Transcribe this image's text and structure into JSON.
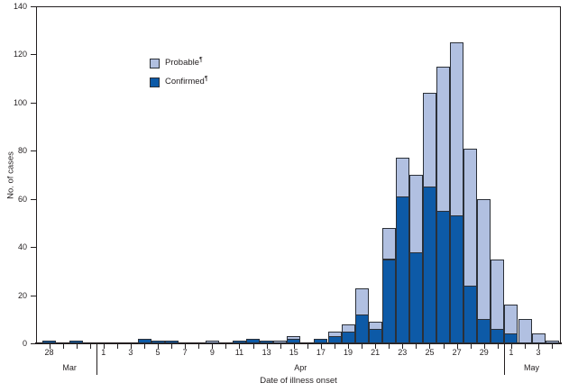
{
  "chart_data": {
    "type": "bar",
    "stacked": true,
    "xlabel": "Date of illness onset",
    "ylabel": "No. of cases",
    "ylim": [
      0,
      140
    ],
    "y_ticks": [
      0,
      20,
      40,
      60,
      80,
      100,
      120,
      140
    ],
    "grid": false,
    "legend_position": "upper-left-inside",
    "legend": [
      {
        "label": "Probable",
        "marker": "¶",
        "color": "#b1c0e1"
      },
      {
        "label": "Confirmed",
        "marker": "¶",
        "color": "#0d5aa7"
      }
    ],
    "series_note": "values are cases per day; stacked: confirmed (dark) on bottom, probable (light) on top",
    "months": [
      {
        "name": "Mar",
        "from": 0,
        "to": 3
      },
      {
        "name": "Apr",
        "from": 4,
        "to": 33
      },
      {
        "name": "May",
        "from": 34,
        "to": 37
      }
    ],
    "days": [
      {
        "month": "Mar",
        "day": 28,
        "tick_label": "28",
        "confirmed": 1,
        "probable": 0
      },
      {
        "month": "Mar",
        "day": 29,
        "tick_label": "",
        "confirmed": 0,
        "probable": 0
      },
      {
        "month": "Mar",
        "day": 30,
        "tick_label": "",
        "confirmed": 1,
        "probable": 0
      },
      {
        "month": "Mar",
        "day": 31,
        "tick_label": "",
        "confirmed": 0,
        "probable": 0
      },
      {
        "month": "Apr",
        "day": 1,
        "tick_label": "1",
        "confirmed": 0,
        "probable": 0
      },
      {
        "month": "Apr",
        "day": 2,
        "tick_label": "",
        "confirmed": 0,
        "probable": 0
      },
      {
        "month": "Apr",
        "day": 3,
        "tick_label": "3",
        "confirmed": 0,
        "probable": 0
      },
      {
        "month": "Apr",
        "day": 4,
        "tick_label": "",
        "confirmed": 2,
        "probable": 0
      },
      {
        "month": "Apr",
        "day": 5,
        "tick_label": "5",
        "confirmed": 1,
        "probable": 0
      },
      {
        "month": "Apr",
        "day": 6,
        "tick_label": "",
        "confirmed": 1,
        "probable": 0
      },
      {
        "month": "Apr",
        "day": 7,
        "tick_label": "7",
        "confirmed": 0,
        "probable": 0
      },
      {
        "month": "Apr",
        "day": 8,
        "tick_label": "",
        "confirmed": 0,
        "probable": 0
      },
      {
        "month": "Apr",
        "day": 9,
        "tick_label": "9",
        "confirmed": 0,
        "probable": 1
      },
      {
        "month": "Apr",
        "day": 10,
        "tick_label": "",
        "confirmed": 0,
        "probable": 0
      },
      {
        "month": "Apr",
        "day": 11,
        "tick_label": "11",
        "confirmed": 1,
        "probable": 0
      },
      {
        "month": "Apr",
        "day": 12,
        "tick_label": "",
        "confirmed": 2,
        "probable": 0
      },
      {
        "month": "Apr",
        "day": 13,
        "tick_label": "13",
        "confirmed": 1,
        "probable": 0
      },
      {
        "month": "Apr",
        "day": 14,
        "tick_label": "",
        "confirmed": 0,
        "probable": 1
      },
      {
        "month": "Apr",
        "day": 15,
        "tick_label": "15",
        "confirmed": 2,
        "probable": 1
      },
      {
        "month": "Apr",
        "day": 16,
        "tick_label": "",
        "confirmed": 0,
        "probable": 0
      },
      {
        "month": "Apr",
        "day": 17,
        "tick_label": "17",
        "confirmed": 2,
        "probable": 0
      },
      {
        "month": "Apr",
        "day": 18,
        "tick_label": "",
        "confirmed": 3,
        "probable": 2
      },
      {
        "month": "Apr",
        "day": 19,
        "tick_label": "19",
        "confirmed": 5,
        "probable": 3
      },
      {
        "month": "Apr",
        "day": 20,
        "tick_label": "",
        "confirmed": 12,
        "probable": 11
      },
      {
        "month": "Apr",
        "day": 21,
        "tick_label": "21",
        "confirmed": 6,
        "probable": 3
      },
      {
        "month": "Apr",
        "day": 22,
        "tick_label": "",
        "confirmed": 35,
        "probable": 13
      },
      {
        "month": "Apr",
        "day": 23,
        "tick_label": "23",
        "confirmed": 61,
        "probable": 16
      },
      {
        "month": "Apr",
        "day": 24,
        "tick_label": "",
        "confirmed": 38,
        "probable": 32
      },
      {
        "month": "Apr",
        "day": 25,
        "tick_label": "25",
        "confirmed": 65,
        "probable": 39
      },
      {
        "month": "Apr",
        "day": 26,
        "tick_label": "",
        "confirmed": 55,
        "probable": 60
      },
      {
        "month": "Apr",
        "day": 27,
        "tick_label": "27",
        "confirmed": 53,
        "probable": 72
      },
      {
        "month": "Apr",
        "day": 28,
        "tick_label": "",
        "confirmed": 24,
        "probable": 57
      },
      {
        "month": "Apr",
        "day": 29,
        "tick_label": "29",
        "confirmed": 10,
        "probable": 50
      },
      {
        "month": "Apr",
        "day": 30,
        "tick_label": "",
        "confirmed": 6,
        "probable": 29
      },
      {
        "month": "May",
        "day": 1,
        "tick_label": "1",
        "confirmed": 4,
        "probable": 12
      },
      {
        "month": "May",
        "day": 2,
        "tick_label": "",
        "confirmed": 0,
        "probable": 10
      },
      {
        "month": "May",
        "day": 3,
        "tick_label": "3",
        "confirmed": 0,
        "probable": 4
      },
      {
        "month": "May",
        "day": 4,
        "tick_label": "",
        "confirmed": 0,
        "probable": 1
      }
    ]
  }
}
